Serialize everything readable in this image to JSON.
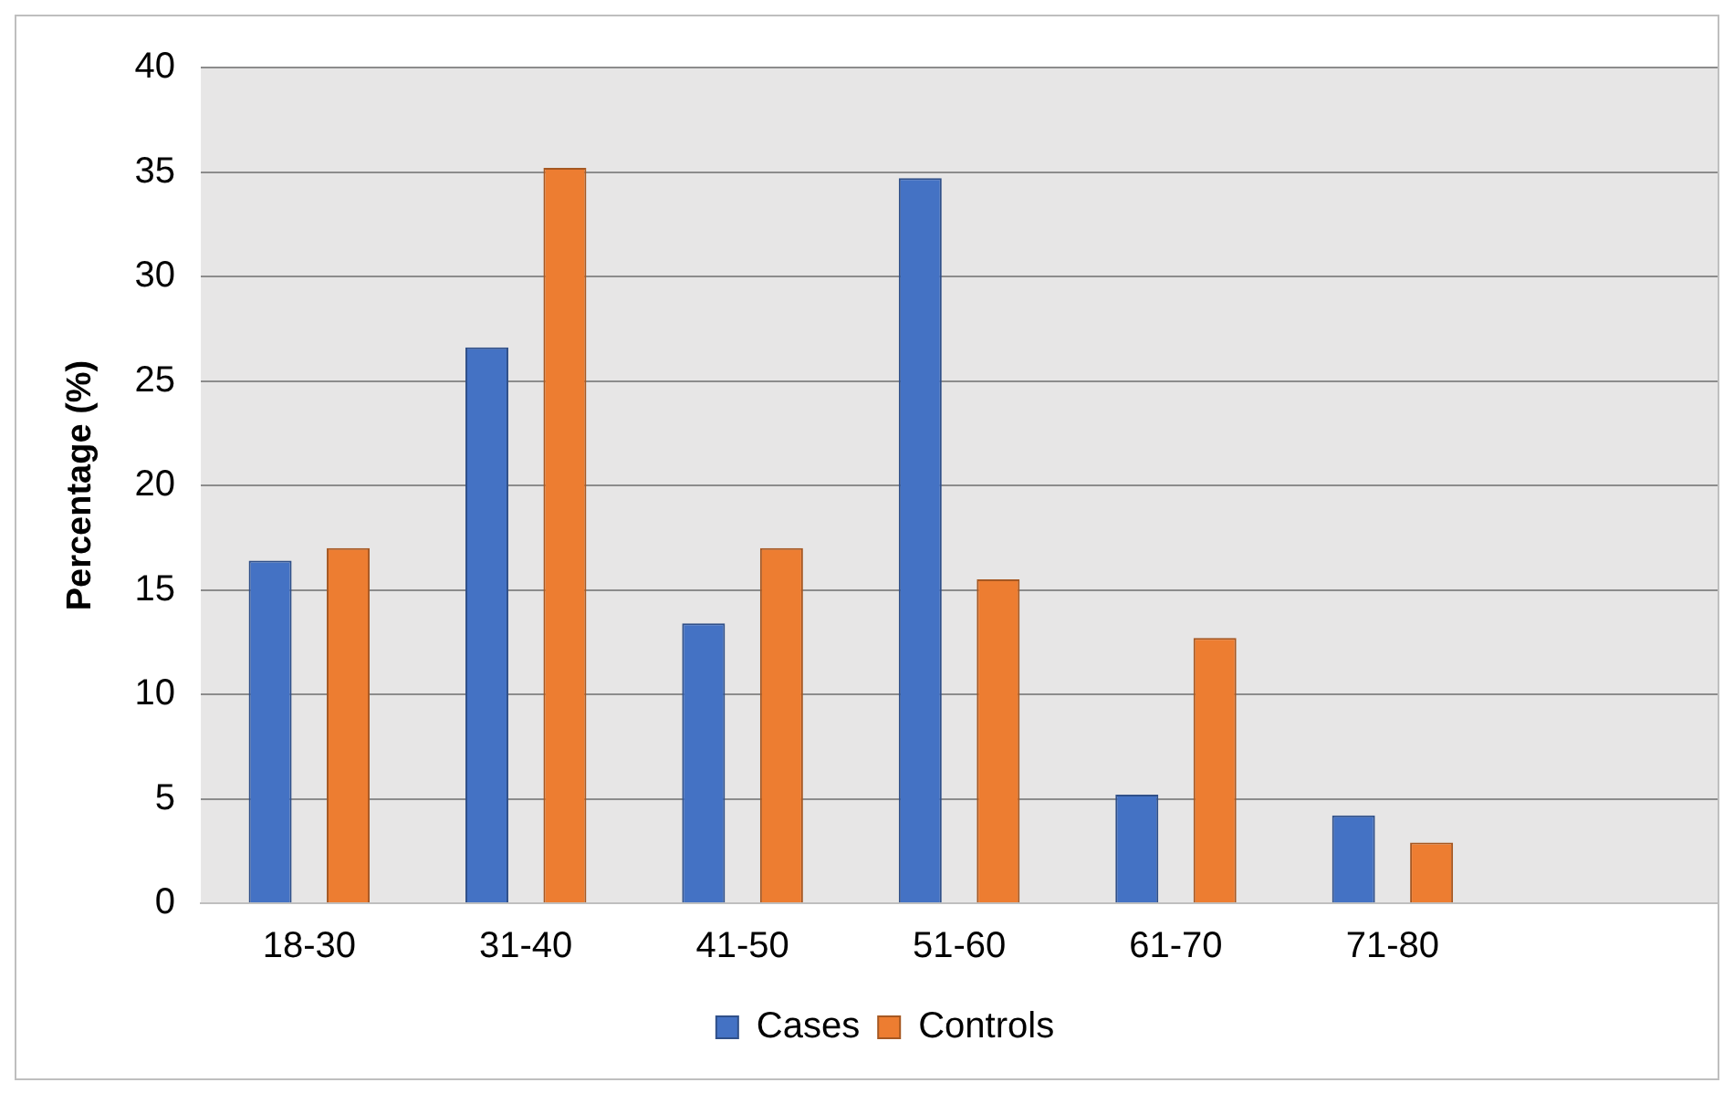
{
  "chart_data": {
    "type": "bar",
    "ylabel": "Percentage (%)",
    "categories": [
      "18-30",
      "31-40",
      "41-50",
      "51-60",
      "61-70",
      "71-80",
      null
    ],
    "series": [
      {
        "name": "Cases",
        "color": "#4472c4",
        "values": [
          16.4,
          26.6,
          13.4,
          34.7,
          5.2,
          4.2,
          null
        ]
      },
      {
        "name": "Controls",
        "color": "#ed7d31",
        "values": [
          17.0,
          35.2,
          17.0,
          15.5,
          12.7,
          2.9,
          null
        ]
      }
    ],
    "ylim": [
      0,
      40
    ],
    "yticks": [
      0,
      5,
      10,
      15,
      20,
      25,
      30,
      35,
      40
    ],
    "grid": "y",
    "legend": "bottom"
  }
}
